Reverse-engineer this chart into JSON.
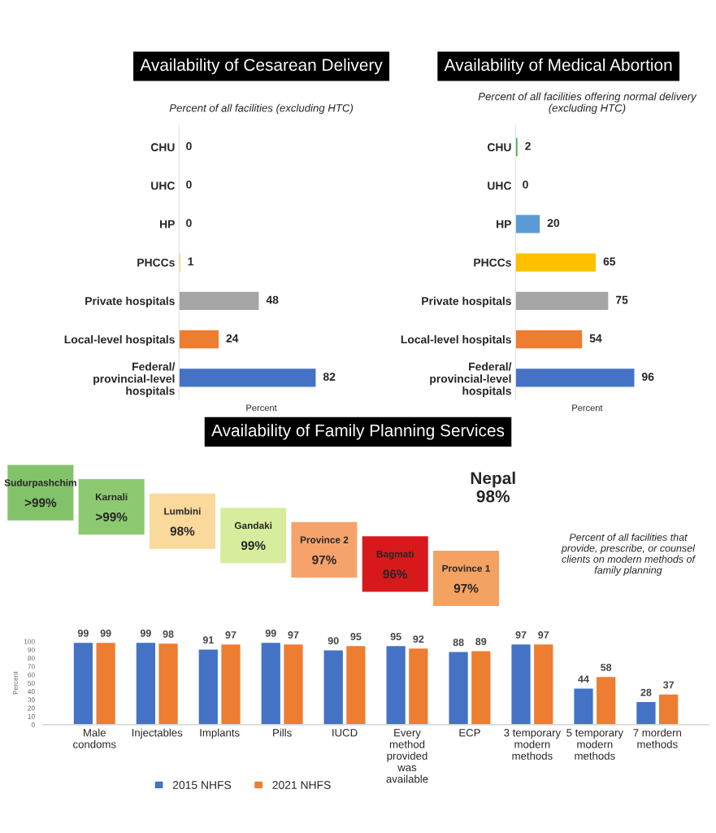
{
  "chart_data": [
    {
      "type": "bar",
      "orientation": "horizontal",
      "title": "Availability of Cesarean Delivery",
      "subtitle": "Percent of all facilities (excluding HTC)",
      "xlabel": "Percent",
      "categories": [
        "CHU",
        "UHC",
        "HP",
        "PHCCs",
        "Private hospitals",
        "Local-level hospitals",
        "Federal/ provincial-level hospitals"
      ],
      "values": [
        0,
        0,
        0,
        1,
        48,
        24,
        82
      ],
      "colors": [
        null,
        null,
        null,
        "#ffc000",
        "#a5a5a5",
        "#ed7d31",
        "#4472c4"
      ],
      "data_labels": true,
      "tick_labels": "y"
    },
    {
      "type": "bar",
      "orientation": "horizontal",
      "title": "Availability of Medical Abortion",
      "subtitle": "Percent of all facilities offering normal delivery (excluding HTC)",
      "xlabel": "Percent",
      "categories": [
        "CHU",
        "UHC",
        "HP",
        "PHCCs",
        "Private hospitals",
        "Local-level hospitals",
        "Federal/ provincial-level hospitals"
      ],
      "values": [
        2,
        0,
        20,
        65,
        75,
        54,
        96
      ],
      "colors": [
        "#3cb44b",
        null,
        "#5b9bd5",
        "#ffc000",
        "#a5a5a5",
        "#ed7d31",
        "#4472c4"
      ],
      "data_labels": true,
      "tick_labels": "y"
    },
    {
      "type": "other",
      "title": "Availability of Family Planning Services",
      "categories": [
        "Sudurpashchim",
        "Karnali",
        "Lumbini",
        "Gandaki",
        "Province 2",
        "Bagmati",
        "Province 1"
      ],
      "value_labels": [
        ">99%",
        ">99%",
        "98%",
        "99%",
        "97%",
        "96%",
        "97%"
      ],
      "colors": [
        "#82c36a",
        "#8cc971",
        "#fad99c",
        "#d8ec9e",
        "#f6a36b",
        "#d7191c",
        "#f4a261"
      ],
      "annotations": [
        "Nepal",
        "98%",
        "Percent of all facilities that provide, prescribe, or counsel clients on modern methods of family planning"
      ]
    },
    {
      "type": "bar",
      "ylabel": "Percent",
      "categories": [
        "Male condoms",
        "Injectables",
        "Implants",
        "Pills",
        "IUCD",
        "Every method provided was available",
        "ECP",
        "3 temporary modern methods",
        "5 temporary modern methods",
        "7 mordern methods"
      ],
      "series": [
        {
          "name": "2015 NHFS",
          "color": "#4472c4",
          "values": [
            99,
            99,
            91,
            99,
            90,
            95,
            88,
            97,
            44,
            28
          ]
        },
        {
          "name": "2021 NHFS",
          "color": "#ed7d31",
          "values": [
            99,
            98,
            97,
            97,
            95,
            92,
            89,
            97,
            58,
            37
          ]
        }
      ],
      "ylim": [
        0,
        100
      ],
      "yticks": [
        0,
        10,
        20,
        30,
        40,
        50,
        60,
        70,
        80,
        90,
        100
      ],
      "data_labels": true,
      "legend": "bottom"
    }
  ]
}
